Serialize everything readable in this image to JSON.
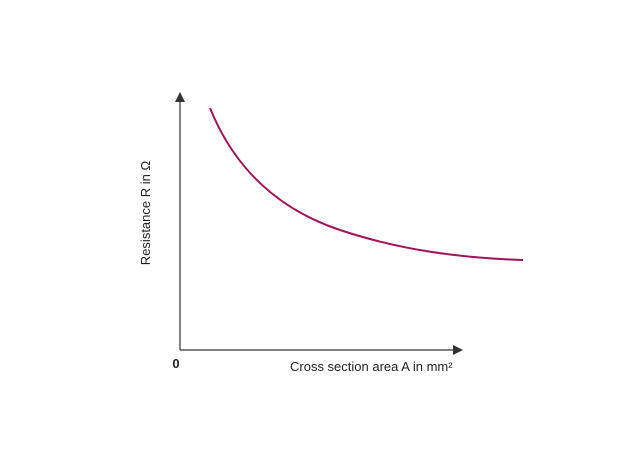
{
  "axes": {
    "y_label": "Resistance R in Ω",
    "x_label": "Cross section area A in mm²",
    "origin_label": "0"
  }
}
